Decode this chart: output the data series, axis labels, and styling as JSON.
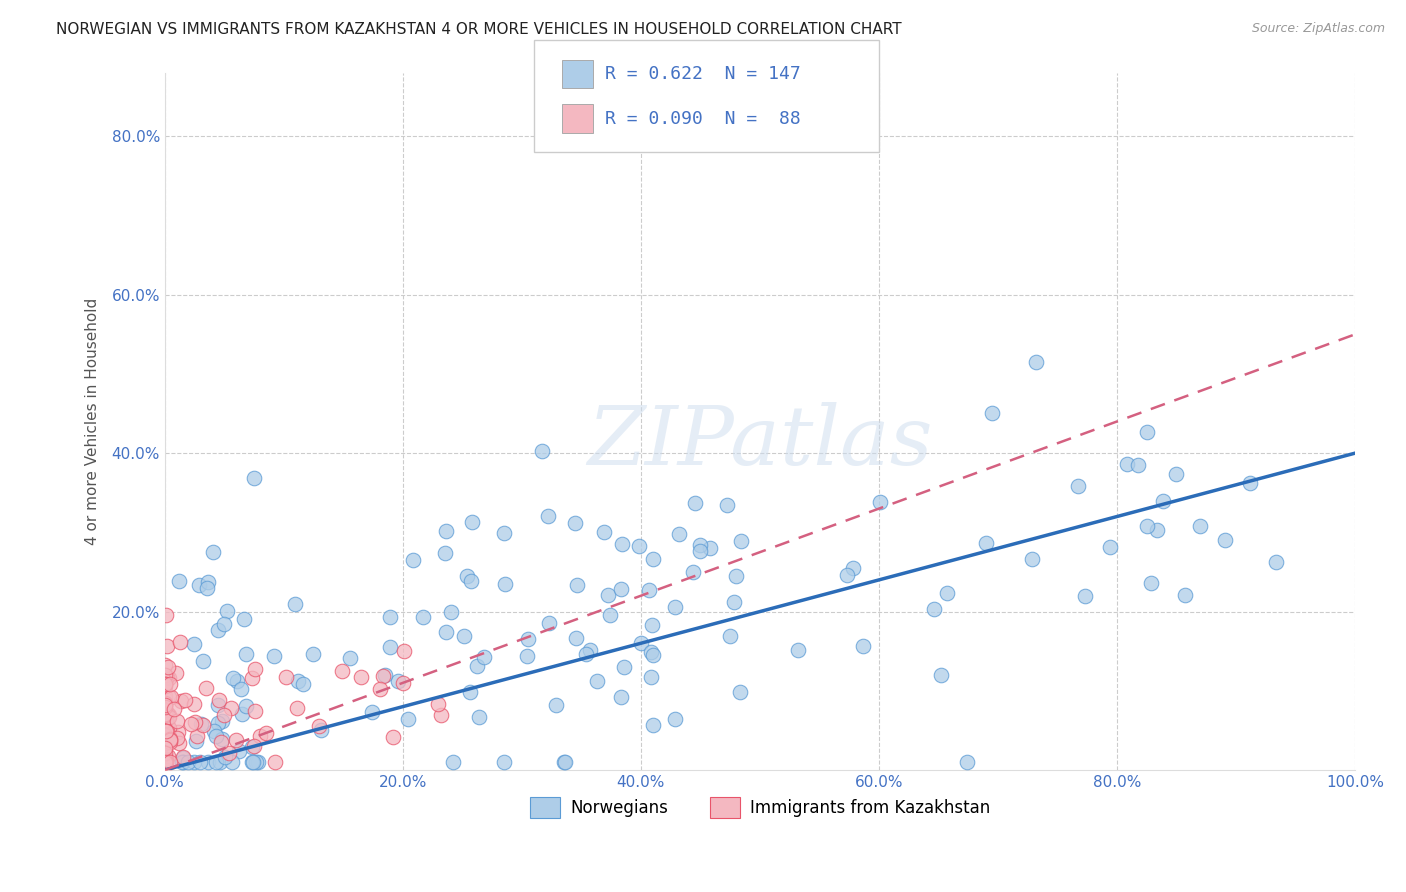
{
  "title": "NORWEGIAN VS IMMIGRANTS FROM KAZAKHSTAN 4 OR MORE VEHICLES IN HOUSEHOLD CORRELATION CHART",
  "source": "Source: ZipAtlas.com",
  "ylabel": "4 or more Vehicles in Household",
  "xlabel": "",
  "xlim": [
    0.0,
    1.0
  ],
  "ylim": [
    0.0,
    0.88
  ],
  "xtick_labels": [
    "0.0%",
    "20.0%",
    "40.0%",
    "60.0%",
    "80.0%",
    "100.0%"
  ],
  "xtick_vals": [
    0.0,
    0.2,
    0.4,
    0.6,
    0.8,
    1.0
  ],
  "ytick_labels": [
    "20.0%",
    "40.0%",
    "60.0%",
    "80.0%"
  ],
  "ytick_vals": [
    0.2,
    0.4,
    0.6,
    0.8
  ],
  "legend_entries": [
    {
      "color": "#aecde8",
      "edge_color": "#5b9bd5",
      "R": "0.622",
      "N": "147",
      "label": "Norwegians"
    },
    {
      "color": "#f4b8c1",
      "edge_color": "#e8546a",
      "R": "0.090",
      "N": " 88",
      "label": "Immigrants from Kazakhstan"
    }
  ],
  "blue_line_color": "#2b6cb8",
  "pink_line_color": "#d46080",
  "watermark": "ZIPatlas",
  "background_color": "#ffffff",
  "grid_color": "#cccccc",
  "title_fontsize": 11,
  "axis_label_fontsize": 11,
  "tick_fontsize": 11,
  "legend_fontsize": 13,
  "legend_text_color": "#4472c4",
  "blue_line_slope": 0.4,
  "blue_line_intercept": 0.0,
  "pink_line_slope": 0.55,
  "pink_line_intercept": 0.0
}
